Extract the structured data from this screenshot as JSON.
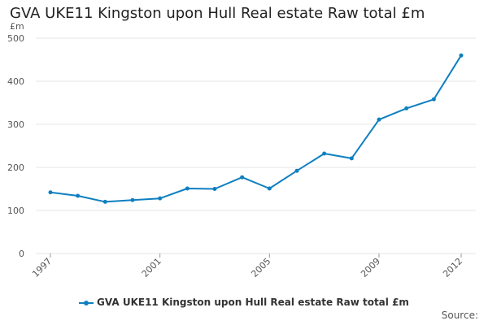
{
  "title": "GVA UKE11 Kingston upon Hull Real estate Raw total £m",
  "source_label": "Source:",
  "colors": {
    "series": "#0f7fc0",
    "grid": "#e6e6e6",
    "axis_text": "#555555"
  },
  "chart_data": {
    "type": "line",
    "title": "GVA UKE11 Kingston upon Hull Real estate Raw total £m",
    "ylabel": "£m",
    "xlabel": "",
    "ylim": [
      0,
      500
    ],
    "yticks": [
      0,
      100,
      200,
      300,
      400,
      500
    ],
    "xticks": [
      1997,
      2001,
      2005,
      2009,
      2012
    ],
    "xlim": [
      1997,
      2012
    ],
    "grid": true,
    "legend": "bottom",
    "series": [
      {
        "name": "GVA UKE11 Kingston upon Hull Real estate Raw total £m",
        "x": [
          1997,
          1998,
          1999,
          2000,
          2001,
          2002,
          2003,
          2004,
          2005,
          2006,
          2007,
          2008,
          2009,
          2010,
          2011,
          2012
        ],
        "values": [
          142,
          134,
          120,
          124,
          128,
          151,
          150,
          177,
          151,
          192,
          232,
          221,
          311,
          337,
          358,
          460
        ]
      }
    ]
  }
}
